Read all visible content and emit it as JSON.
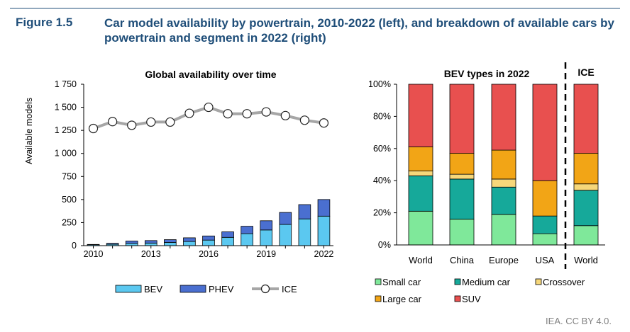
{
  "figure": {
    "number": "Figure 1.5",
    "title": "Car model availability by powertrain, 2010-2022 (left), and breakdown of available cars by powertrain and segment in 2022 (right)",
    "credit": "IEA. CC BY 4.0."
  },
  "colors": {
    "BEV": "#5bc8f0",
    "PHEV": "#4a6fd0",
    "ICE_line": "#a6a6a6",
    "Small car": "#7fe89a",
    "Medium car": "#16a99a",
    "Crossover": "#f6d77a",
    "Large car": "#f2a516",
    "SUV": "#e8504f",
    "title_blue": "#1f4e79"
  },
  "chart_data": [
    {
      "type": "bar",
      "stacked": true,
      "title": "Global availability over time",
      "ylabel": "Available models",
      "xlabel": "",
      "x": [
        2010,
        2011,
        2012,
        2013,
        2014,
        2015,
        2016,
        2017,
        2018,
        2019,
        2020,
        2021,
        2022
      ],
      "x_tick_labels": [
        "2010",
        "2013",
        "2016",
        "2019",
        "2022"
      ],
      "y_tick_labels": [
        "0",
        "250",
        "500",
        "750",
        "1 000",
        "1 250",
        "1 500",
        "1 750"
      ],
      "ylim": [
        0,
        1750
      ],
      "series": [
        {
          "name": "BEV",
          "kind": "bar",
          "values": [
            10,
            15,
            25,
            28,
            35,
            45,
            60,
            90,
            130,
            170,
            230,
            290,
            320
          ]
        },
        {
          "name": "PHEV",
          "kind": "bar",
          "values": [
            3,
            10,
            25,
            27,
            30,
            40,
            45,
            60,
            80,
            100,
            130,
            155,
            180
          ]
        },
        {
          "name": "ICE",
          "kind": "line",
          "values": [
            1270,
            1345,
            1305,
            1340,
            1340,
            1435,
            1500,
            1430,
            1430,
            1450,
            1410,
            1360,
            1330
          ]
        }
      ],
      "legend": [
        "BEV",
        "PHEV",
        "ICE"
      ],
      "legend_position": "bottom",
      "grid": false
    },
    {
      "type": "bar",
      "stacked": true,
      "percent": true,
      "title": "BEV types in 2022",
      "secondary_title": "ICE",
      "categories": [
        "World",
        "China",
        "Europe",
        "USA",
        "World"
      ],
      "groups": [
        "BEV",
        "BEV",
        "BEV",
        "BEV",
        "ICE"
      ],
      "y_tick_labels": [
        "0%",
        "20%",
        "40%",
        "60%",
        "80%",
        "100%"
      ],
      "ylim": [
        0,
        100
      ],
      "series": [
        {
          "name": "Small car",
          "values": [
            21,
            16,
            19,
            7,
            12
          ]
        },
        {
          "name": "Medium car",
          "values": [
            22,
            25,
            17,
            11,
            22
          ]
        },
        {
          "name": "Crossover",
          "values": [
            3,
            3,
            5,
            0,
            4
          ]
        },
        {
          "name": "Large car",
          "values": [
            15,
            13,
            18,
            22,
            19
          ]
        },
        {
          "name": "SUV",
          "values": [
            39,
            43,
            41,
            60,
            43
          ]
        }
      ],
      "legend": [
        "Small car",
        "Medium car",
        "Crossover",
        "Large car",
        "SUV"
      ],
      "legend_position": "bottom",
      "grid": false
    }
  ]
}
